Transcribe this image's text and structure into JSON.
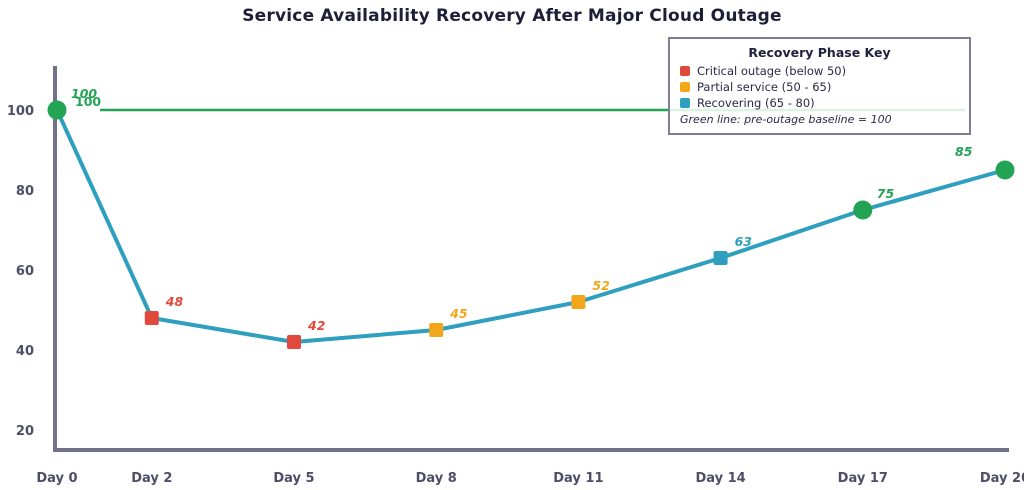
{
  "title": "Service Availability Recovery After Major Cloud Outage",
  "colors": {
    "line": "#2E9FBE",
    "green": "#23A455",
    "red": "#E0493C",
    "orange": "#F2A71B",
    "axis": "#71718A",
    "tick_text": "#4D4D68",
    "title_text": "#1E1E38",
    "legend_border": "#7F7F93"
  },
  "legend": {
    "title": "Recovery Phase Key",
    "items": [
      {
        "label": "Critical outage (below 50)",
        "color": "#E0493C"
      },
      {
        "label": "Partial service (50 - 65)",
        "color": "#F2A71B"
      },
      {
        "label": "Recovering (65 - 80)",
        "color": "#2E9FBE"
      }
    ],
    "footnote": "Green line: pre-outage baseline = 100"
  },
  "chart_data": {
    "type": "line",
    "title": "Service Availability Recovery After Major Cloud Outage",
    "xlabel": "",
    "ylabel": "",
    "x": [
      0,
      2,
      5,
      8,
      11,
      14,
      17,
      20
    ],
    "x_tick_labels": [
      "Day 0",
      "Day 2",
      "Day 5",
      "Day 8",
      "Day 11",
      "Day 14",
      "Day 17",
      "Day 20"
    ],
    "series": [
      {
        "name": "Service availability",
        "color": "#2E9FBE",
        "values": [
          100,
          48,
          42,
          45,
          52,
          63,
          75,
          85
        ]
      }
    ],
    "point_labels": [
      "100",
      "48",
      "42",
      "45",
      "52",
      "63",
      "75",
      "85"
    ],
    "point_colors": [
      "#23A455",
      "#E0493C",
      "#E0493C",
      "#F2A71B",
      "#F2A71B",
      "#2E9FBE",
      "#23A455",
      "#23A455"
    ],
    "point_shapes": [
      "circle",
      "square",
      "square",
      "square",
      "square",
      "square",
      "circle",
      "circle"
    ],
    "baseline": {
      "value": 100,
      "label": "100",
      "color": "#23A455"
    },
    "ylim": [
      15,
      110
    ],
    "yticks": [
      20,
      40,
      60,
      80,
      100
    ],
    "grid": false,
    "legend_position": "top-right"
  }
}
